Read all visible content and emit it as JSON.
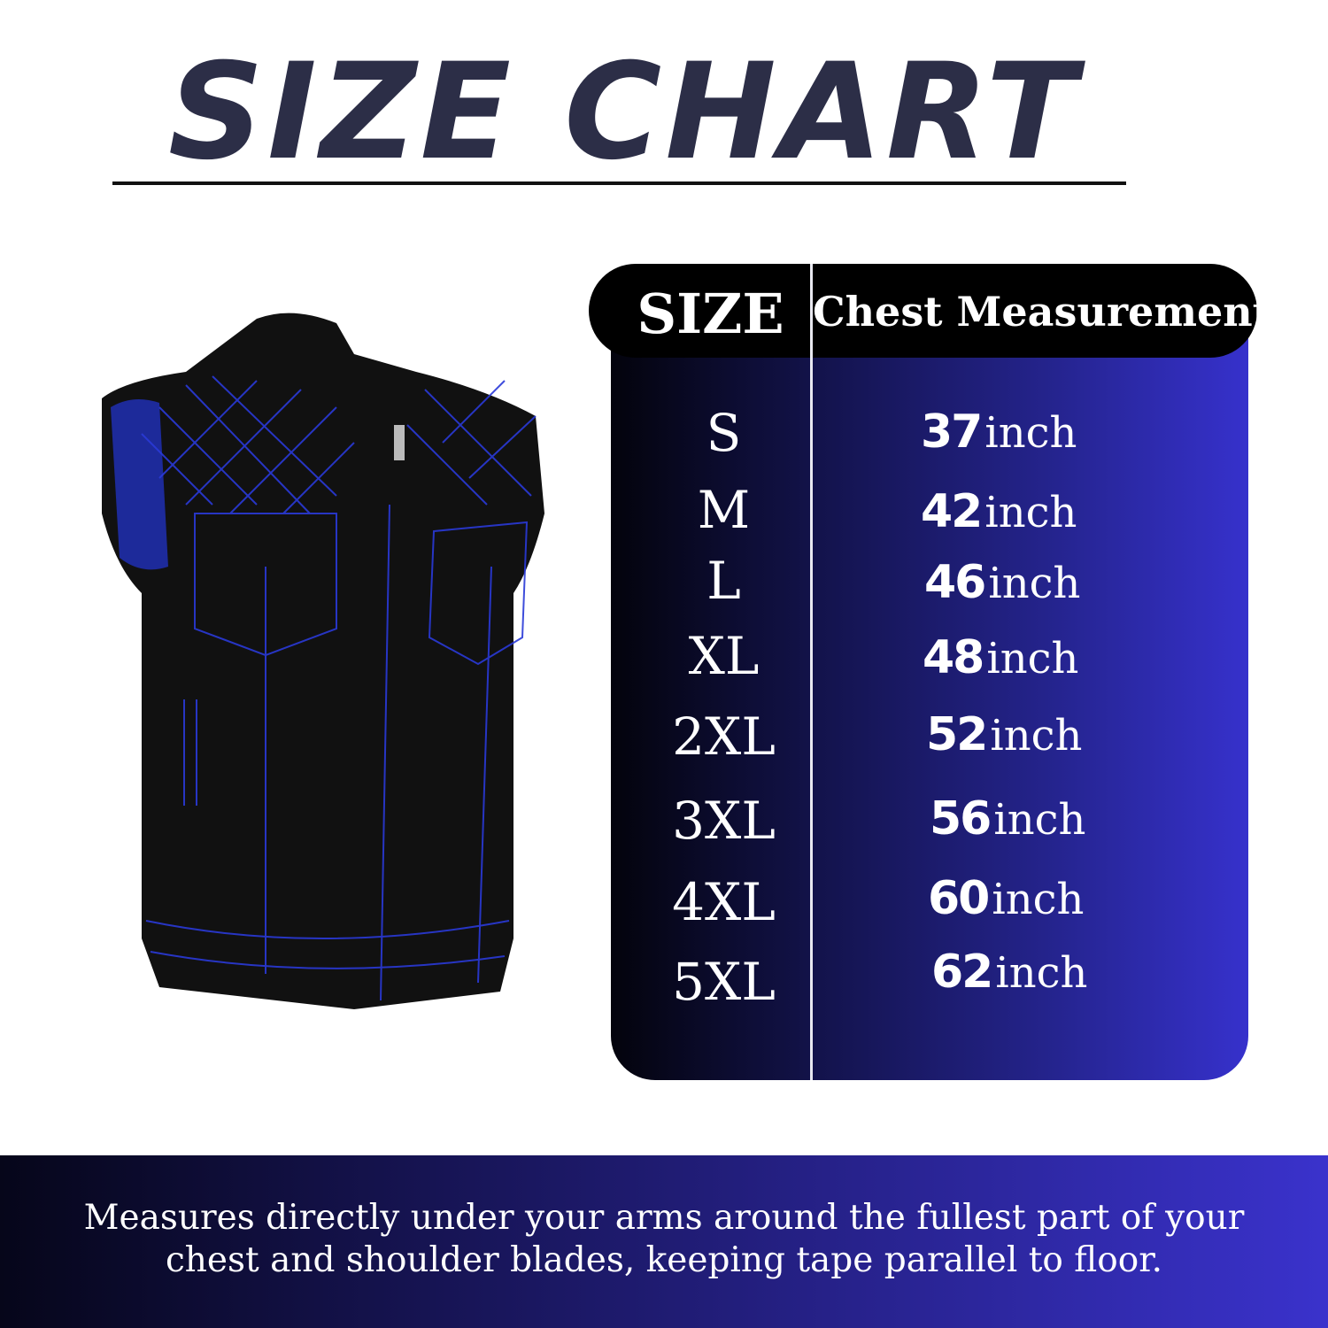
{
  "title": "SIZE CHART",
  "table": {
    "headers": {
      "size": "SIZE",
      "chest": "Chest Measurement"
    },
    "unit": "inch",
    "rows": [
      {
        "size": "S",
        "chest": "37"
      },
      {
        "size": "M",
        "chest": "42"
      },
      {
        "size": "L",
        "chest": "46"
      },
      {
        "size": "XL",
        "chest": "48"
      },
      {
        "size": "2XL",
        "chest": "52"
      },
      {
        "size": "3XL",
        "chest": "56"
      },
      {
        "size": "4XL",
        "chest": "60"
      },
      {
        "size": "5XL",
        "chest": "62"
      }
    ]
  },
  "footer": {
    "line1": "Measures directly under your arms around the fullest part of your",
    "line2": "chest and shoulder blades, keeping tape parallel to floor."
  },
  "colors": {
    "title": "#2c2e47",
    "gradient_start": "#03030c",
    "gradient_end": "#3631cc",
    "stitching": "#2a3ad8"
  }
}
